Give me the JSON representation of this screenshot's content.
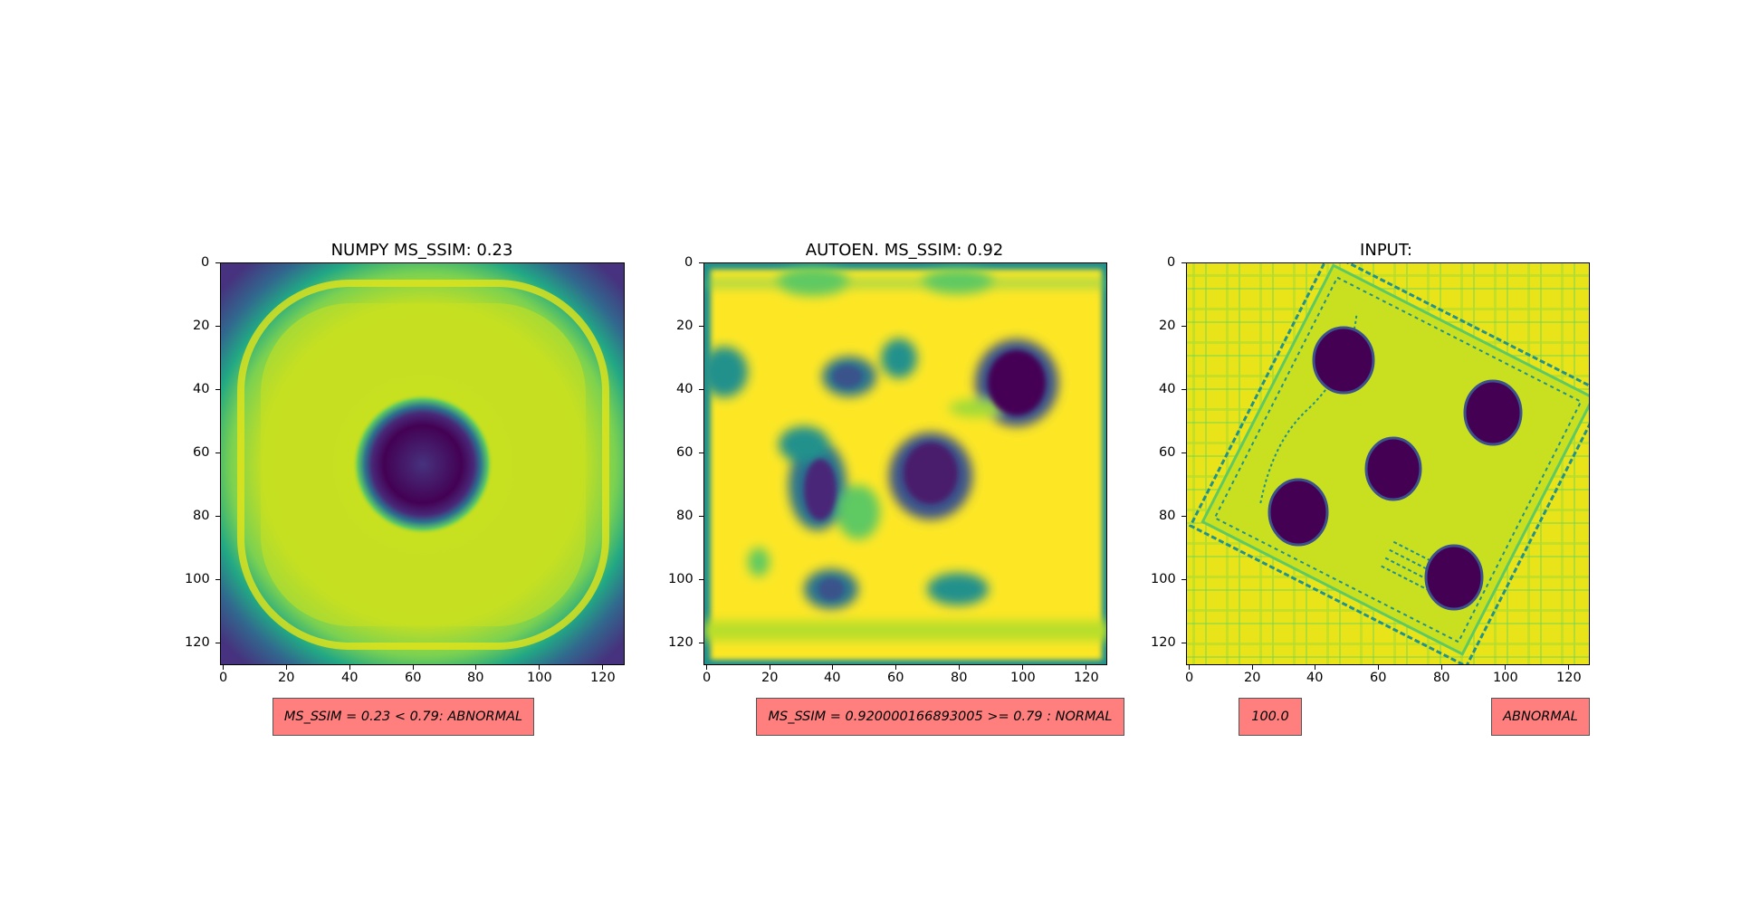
{
  "chart_data": [
    {
      "type": "heatmap",
      "title": "NUMPY MS_SSIM: 0.23",
      "xlim": [
        0,
        127
      ],
      "ylim": [
        127,
        0
      ],
      "x_ticks": [
        "0",
        "20",
        "40",
        "60",
        "80",
        "100",
        "120"
      ],
      "y_ticks": [
        "0",
        "20",
        "40",
        "60",
        "80",
        "100",
        "120"
      ],
      "colormap": "viridis",
      "annotations": [
        "MS_SSIM  = 0.23 < 0.79: ABNORMAL"
      ]
    },
    {
      "type": "heatmap",
      "title": "AUTOEN. MS_SSIM: 0.92",
      "xlim": [
        0,
        127
      ],
      "ylim": [
        127,
        0
      ],
      "x_ticks": [
        "0",
        "20",
        "40",
        "60",
        "80",
        "100",
        "120"
      ],
      "y_ticks": [
        "0",
        "20",
        "40",
        "60",
        "80",
        "100",
        "120"
      ],
      "colormap": "viridis",
      "annotations": [
        "MS_SSIM = 0.920000166893005 >= 0.79 : NORMAL"
      ]
    },
    {
      "type": "heatmap",
      "title": "INPUT:",
      "xlim": [
        0,
        127
      ],
      "ylim": [
        127,
        0
      ],
      "x_ticks": [
        "0",
        "20",
        "40",
        "60",
        "80",
        "100",
        "120"
      ],
      "y_ticks": [
        "0",
        "20",
        "40",
        "60",
        "80",
        "100",
        "120"
      ],
      "colormap": "viridis",
      "annotations": [
        "100.0",
        "ABNORMAL"
      ]
    }
  ],
  "colors": {
    "viridis_dark": "#440154",
    "viridis_blue": "#3b528b",
    "viridis_teal": "#21918c",
    "viridis_green": "#5ec962",
    "viridis_lime": "#c8e020",
    "viridis_yellow": "#fde725",
    "annotation_box": "#ff7f7f"
  }
}
